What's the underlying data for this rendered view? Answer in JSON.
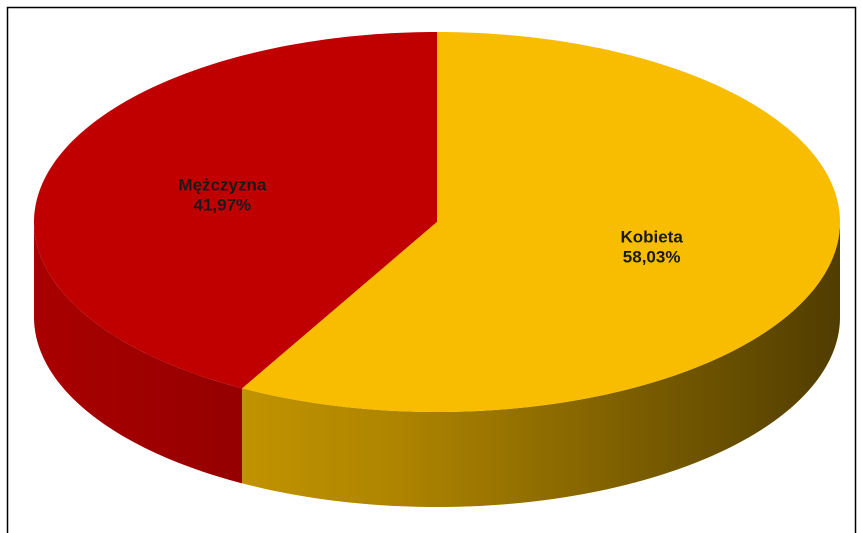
{
  "chart_data": {
    "type": "pie",
    "categories": [
      "Mężczyzna",
      "Kobieta"
    ],
    "values": [
      41.97,
      58.03
    ],
    "value_labels": [
      "41,97%",
      "58,03%"
    ],
    "colors": [
      "#c00000",
      "#f9bd00"
    ]
  }
}
